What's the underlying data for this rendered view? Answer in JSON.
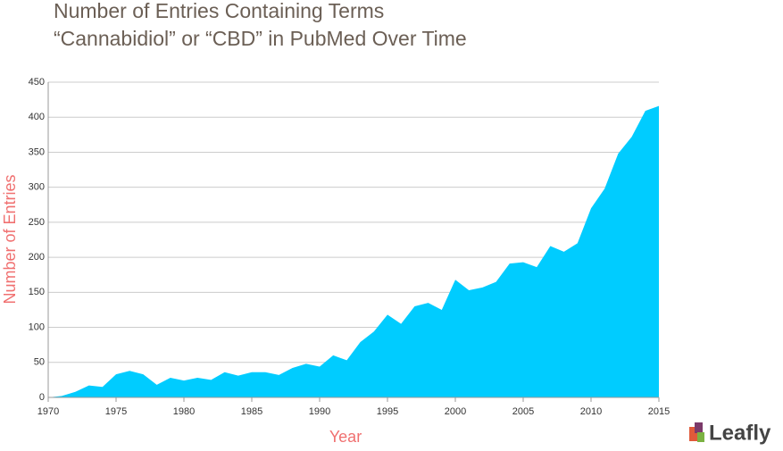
{
  "chart_data": {
    "type": "area",
    "title": "Number of Entries Containing Terms",
    "subtitle": "“Cannabidiol” or “CBD” in PubMed Over Time",
    "x_label": "Year",
    "y_label": "Number of Entries",
    "x": [
      1970,
      1971,
      1972,
      1973,
      1974,
      1975,
      1976,
      1977,
      1978,
      1979,
      1980,
      1981,
      1982,
      1983,
      1984,
      1985,
      1986,
      1987,
      1988,
      1989,
      1990,
      1991,
      1992,
      1993,
      1994,
      1995,
      1996,
      1997,
      1998,
      1999,
      2000,
      2001,
      2002,
      2003,
      2004,
      2005,
      2006,
      2007,
      2008,
      2009,
      2010,
      2011,
      2012,
      2013,
      2014,
      2015
    ],
    "values": [
      0,
      2,
      8,
      17,
      15,
      33,
      38,
      33,
      18,
      28,
      24,
      28,
      25,
      36,
      31,
      36,
      36,
      32,
      42,
      48,
      44,
      60,
      53,
      79,
      94,
      118,
      105,
      130,
      135,
      125,
      168,
      153,
      157,
      165,
      191,
      193,
      186,
      216,
      208,
      220,
      270,
      298,
      348,
      372,
      409,
      416
    ],
    "color": "#00ccff",
    "xlim": [
      1970,
      2015
    ],
    "xticks": [
      1970,
      1975,
      1980,
      1985,
      1990,
      1995,
      2000,
      2005,
      2010,
      2015
    ],
    "ylim": [
      0,
      450
    ],
    "yticks": [
      0,
      50,
      100,
      150,
      200,
      250,
      300,
      350,
      400,
      450
    ],
    "grid": true,
    "brand": "Leafly"
  }
}
